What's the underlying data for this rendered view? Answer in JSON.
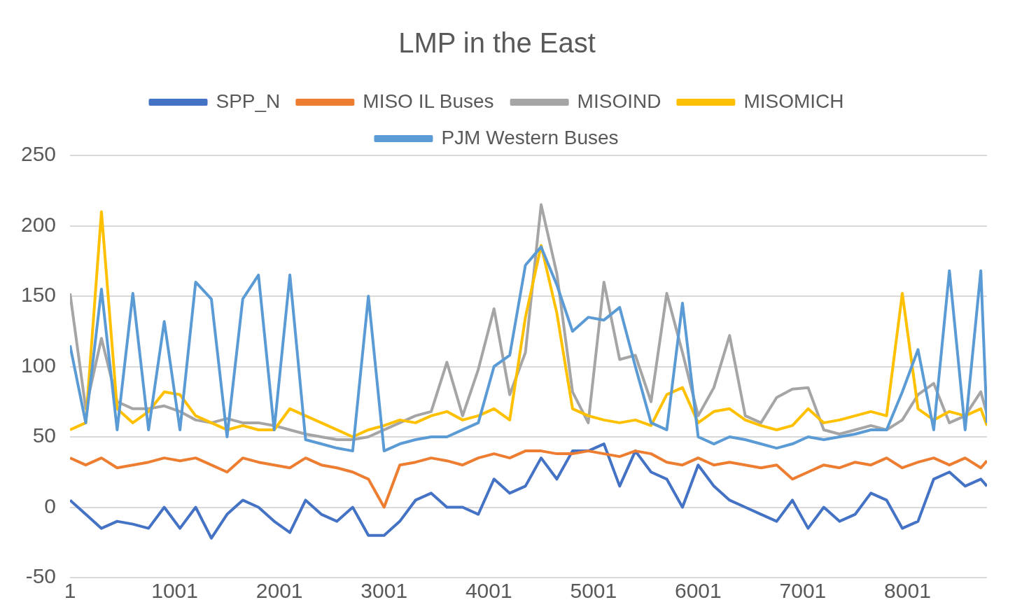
{
  "chart_data": {
    "type": "line",
    "title": "LMP in the East",
    "x": [
      1,
      151,
      301,
      451,
      601,
      751,
      901,
      1051,
      1201,
      1351,
      1501,
      1651,
      1801,
      1951,
      2101,
      2251,
      2401,
      2551,
      2701,
      2851,
      3001,
      3151,
      3301,
      3451,
      3601,
      3751,
      3901,
      4051,
      4201,
      4351,
      4501,
      4651,
      4801,
      4951,
      5101,
      5251,
      5401,
      5551,
      5701,
      5851,
      6001,
      6151,
      6301,
      6451,
      6601,
      6751,
      6901,
      7051,
      7201,
      7351,
      7501,
      7651,
      7801,
      7951,
      8101,
      8251,
      8401,
      8551,
      8701,
      8760
    ],
    "series": [
      {
        "name": "SPP_N",
        "color": "#4472c4",
        "values": [
          5,
          -5,
          -15,
          -10,
          -12,
          -15,
          0,
          -15,
          0,
          -22,
          -5,
          5,
          0,
          -10,
          -18,
          5,
          -5,
          -10,
          0,
          -20,
          -20,
          -10,
          5,
          10,
          0,
          0,
          -5,
          20,
          10,
          15,
          35,
          20,
          40,
          40,
          45,
          15,
          40,
          25,
          20,
          0,
          30,
          15,
          5,
          0,
          -5,
          -10,
          5,
          -15,
          0,
          -10,
          -5,
          10,
          5,
          -15,
          -10,
          20,
          25,
          15,
          20,
          15
        ]
      },
      {
        "name": "MISO IL Buses",
        "color": "#ed7d31",
        "values": [
          35,
          30,
          35,
          28,
          30,
          32,
          35,
          33,
          35,
          30,
          25,
          35,
          32,
          30,
          28,
          35,
          30,
          28,
          25,
          20,
          0,
          30,
          32,
          35,
          33,
          30,
          35,
          38,
          35,
          40,
          40,
          38,
          38,
          40,
          38,
          36,
          40,
          38,
          32,
          30,
          35,
          30,
          32,
          30,
          28,
          30,
          20,
          25,
          30,
          28,
          32,
          30,
          35,
          28,
          32,
          35,
          30,
          35,
          28,
          33
        ]
      },
      {
        "name": "MISOIND",
        "color": "#a5a5a5",
        "values": [
          152,
          70,
          120,
          75,
          70,
          70,
          72,
          68,
          62,
          60,
          63,
          60,
          60,
          58,
          55,
          52,
          50,
          48,
          48,
          50,
          55,
          60,
          65,
          68,
          103,
          65,
          98,
          141,
          80,
          110,
          215,
          166,
          82,
          60,
          160,
          105,
          108,
          75,
          152,
          110,
          65,
          85,
          122,
          65,
          60,
          78,
          84,
          85,
          55,
          52,
          55,
          58,
          55,
          62,
          80,
          88,
          60,
          65,
          82,
          66
        ]
      },
      {
        "name": "MISOMICH",
        "color": "#ffc000",
        "values": [
          55,
          60,
          210,
          70,
          60,
          68,
          82,
          80,
          65,
          60,
          55,
          58,
          55,
          55,
          70,
          65,
          60,
          55,
          50,
          55,
          58,
          62,
          60,
          65,
          68,
          62,
          65,
          70,
          62,
          135,
          186,
          138,
          70,
          65,
          62,
          60,
          62,
          58,
          80,
          85,
          60,
          68,
          70,
          62,
          58,
          55,
          58,
          70,
          60,
          62,
          65,
          68,
          65,
          152,
          70,
          62,
          68,
          65,
          70,
          58
        ]
      },
      {
        "name": "PJM Western Buses",
        "color": "#5b9bd5",
        "values": [
          115,
          60,
          155,
          55,
          152,
          55,
          132,
          55,
          160,
          148,
          50,
          148,
          165,
          55,
          165,
          48,
          45,
          42,
          40,
          150,
          40,
          45,
          48,
          50,
          50,
          55,
          60,
          100,
          108,
          172,
          185,
          158,
          125,
          135,
          133,
          142,
          100,
          60,
          55,
          145,
          50,
          45,
          50,
          48,
          45,
          42,
          45,
          50,
          48,
          50,
          52,
          55,
          55,
          82,
          112,
          55,
          168,
          55,
          168,
          60
        ]
      }
    ],
    "xlim": [
      1,
      8760
    ],
    "xticks": [
      1,
      1001,
      2001,
      3001,
      4001,
      5001,
      6001,
      7001,
      8001
    ],
    "ylim": [
      -50,
      250
    ],
    "yticks": [
      -50,
      0,
      50,
      100,
      150,
      200,
      250
    ],
    "grid": "y",
    "legend": "top"
  }
}
